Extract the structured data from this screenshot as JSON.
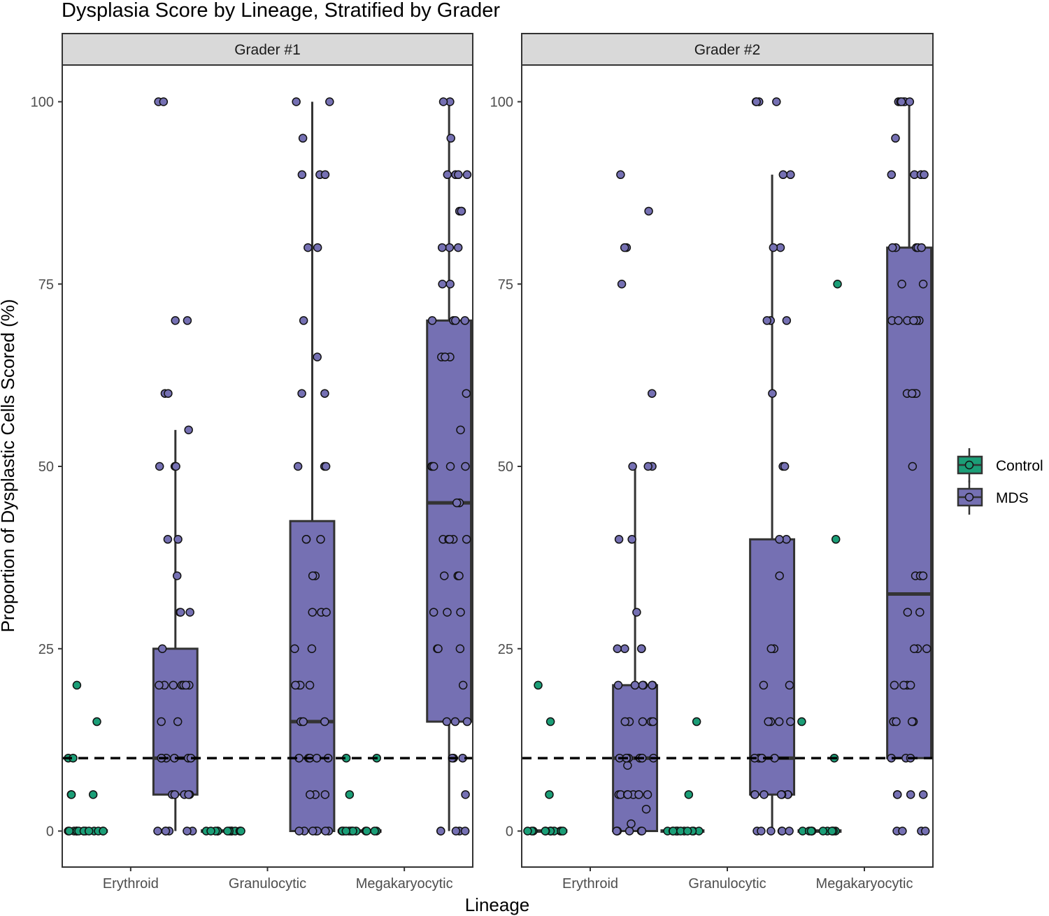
{
  "chart_data": {
    "type": "boxplot",
    "title": "Dysplasia Score by Lineage, Stratified by Grader",
    "xlabel": "Lineage",
    "ylabel": "Proportion of Dysplastic Cells Scored (%)",
    "ylim": [
      -5,
      105
    ],
    "yticks": [
      "0",
      "25",
      "50",
      "75",
      "100"
    ],
    "categories": [
      "Erythroid",
      "Granulocytic",
      "Megakaryocytic"
    ],
    "reference_line": 10,
    "grid": false,
    "legend": {
      "position": "right",
      "entries": [
        {
          "name": "Control",
          "color": "#1b9e77"
        },
        {
          "name": "MDS",
          "color": "#7570b3"
        }
      ]
    },
    "panels": [
      {
        "label": "Grader #1",
        "groups": [
          {
            "category": "Erythroid",
            "series": "Control",
            "box": {
              "q1": 0,
              "median": 0,
              "q3": 0
            },
            "points": [
              0,
              0,
              0,
              0,
              0,
              0,
              0,
              0,
              0,
              0,
              0,
              0,
              0,
              0,
              0,
              5,
              5,
              5,
              10,
              10,
              15,
              20
            ]
          },
          {
            "category": "Erythroid",
            "series": "MDS",
            "box": {
              "min": 0,
              "q1": 5,
              "median": 10,
              "q3": 25,
              "max": 55
            },
            "points": [
              0,
              0,
              0,
              0,
              0,
              0,
              5,
              5,
              5,
              5,
              5,
              10,
              10,
              10,
              10,
              10,
              10,
              15,
              15,
              20,
              20,
              20,
              20,
              20,
              20,
              20,
              25,
              30,
              30,
              30,
              35,
              40,
              40,
              50,
              50,
              50,
              55,
              60,
              60,
              70,
              70,
              100,
              100
            ]
          },
          {
            "category": "Granulocytic",
            "series": "Control",
            "box": {
              "q1": 0,
              "median": 0,
              "q3": 0
            },
            "points": [
              0,
              0,
              0,
              0,
              0,
              0,
              0,
              0,
              0,
              0,
              0,
              0,
              0,
              0
            ]
          },
          {
            "category": "Granulocytic",
            "series": "MDS",
            "box": {
              "min": 0,
              "q1": 0,
              "median": 15,
              "q3": 42.5,
              "max": 100
            },
            "points": [
              0,
              0,
              0,
              0,
              0,
              0,
              0,
              5,
              5,
              5,
              10,
              10,
              10,
              10,
              10,
              15,
              15,
              15,
              20,
              20,
              20,
              20,
              25,
              25,
              30,
              30,
              30,
              35,
              35,
              40,
              40,
              40,
              50,
              50,
              50,
              60,
              60,
              65,
              70,
              80,
              80,
              90,
              90,
              90,
              95,
              100,
              100
            ]
          },
          {
            "category": "Megakaryocytic",
            "series": "Control",
            "box": {
              "q1": 0,
              "median": 0,
              "q3": 0
            },
            "points": [
              0,
              0,
              0,
              0,
              0,
              0,
              0,
              0,
              0,
              0,
              0,
              0,
              0,
              5,
              10,
              10
            ]
          },
          {
            "category": "Megakaryocytic",
            "series": "MDS",
            "box": {
              "min": 0,
              "q1": 15,
              "median": 45,
              "q3": 70,
              "max": 100
            },
            "points": [
              0,
              0,
              0,
              0,
              0,
              5,
              10,
              10,
              10,
              15,
              15,
              15,
              20,
              25,
              25,
              25,
              30,
              30,
              30,
              35,
              35,
              35,
              40,
              40,
              40,
              40,
              40,
              45,
              45,
              50,
              50,
              50,
              50,
              50,
              55,
              60,
              65,
              65,
              65,
              70,
              70,
              70,
              70,
              75,
              75,
              80,
              80,
              80,
              85,
              85,
              85,
              90,
              90,
              90,
              90,
              95,
              100,
              100
            ]
          }
        ]
      },
      {
        "label": "Grader #2",
        "groups": [
          {
            "category": "Erythroid",
            "series": "Control",
            "box": {
              "q1": 0,
              "median": 0,
              "q3": 0
            },
            "points": [
              0,
              0,
              0,
              0,
              0,
              0,
              0,
              0,
              0,
              0,
              0,
              0,
              5,
              15,
              20
            ]
          },
          {
            "category": "Erythroid",
            "series": "MDS",
            "box": {
              "min": 0,
              "q1": 0,
              "median": 10,
              "q3": 20,
              "max": 50
            },
            "points": [
              0,
              0,
              0,
              0,
              0,
              0,
              1,
              3,
              5,
              5,
              5,
              5,
              5,
              5,
              5,
              5,
              9,
              10,
              10,
              10,
              10,
              10,
              10,
              10,
              10,
              15,
              15,
              15,
              15,
              15,
              20,
              20,
              20,
              20,
              20,
              20,
              25,
              25,
              25,
              25,
              30,
              40,
              40,
              50,
              50,
              50,
              60,
              75,
              80,
              80,
              85,
              90
            ]
          },
          {
            "category": "Granulocytic",
            "series": "Control",
            "box": {
              "q1": 0,
              "median": 0,
              "q3": 0
            },
            "points": [
              0,
              0,
              0,
              0,
              0,
              0,
              0,
              0,
              0,
              0,
              0,
              0,
              5,
              15
            ]
          },
          {
            "category": "Granulocytic",
            "series": "MDS",
            "box": {
              "min": 0,
              "q1": 5,
              "median": 10,
              "q3": 40,
              "max": 90
            },
            "points": [
              0,
              0,
              0,
              0,
              0,
              0,
              5,
              5,
              5,
              5,
              5,
              5,
              5,
              10,
              10,
              10,
              10,
              10,
              10,
              15,
              15,
              15,
              15,
              20,
              20,
              25,
              25,
              35,
              40,
              40,
              50,
              50,
              60,
              70,
              70,
              70,
              80,
              80,
              90,
              90,
              100,
              100,
              100,
              100
            ]
          },
          {
            "category": "Megakaryocytic",
            "series": "Control",
            "box": {
              "q1": 0,
              "median": 0,
              "q3": 0
            },
            "points": [
              0,
              0,
              0,
              0,
              0,
              0,
              0,
              0,
              0,
              0,
              0,
              10,
              15,
              40,
              75
            ]
          },
          {
            "category": "Megakaryocytic",
            "series": "MDS",
            "box": {
              "min": 10,
              "q1": 10,
              "median": 32.5,
              "q3": 80,
              "max": 100
            },
            "points": [
              0,
              0,
              0,
              0,
              5,
              5,
              5,
              5,
              10,
              10,
              10,
              15,
              15,
              15,
              15,
              20,
              20,
              20,
              20,
              25,
              25,
              25,
              30,
              30,
              35,
              35,
              35,
              50,
              60,
              60,
              60,
              60,
              70,
              70,
              70,
              70,
              70,
              70,
              75,
              75,
              80,
              80,
              80,
              80,
              80,
              90,
              90,
              90,
              90,
              95,
              100,
              100,
              100,
              100,
              100,
              100
            ]
          }
        ]
      }
    ]
  }
}
